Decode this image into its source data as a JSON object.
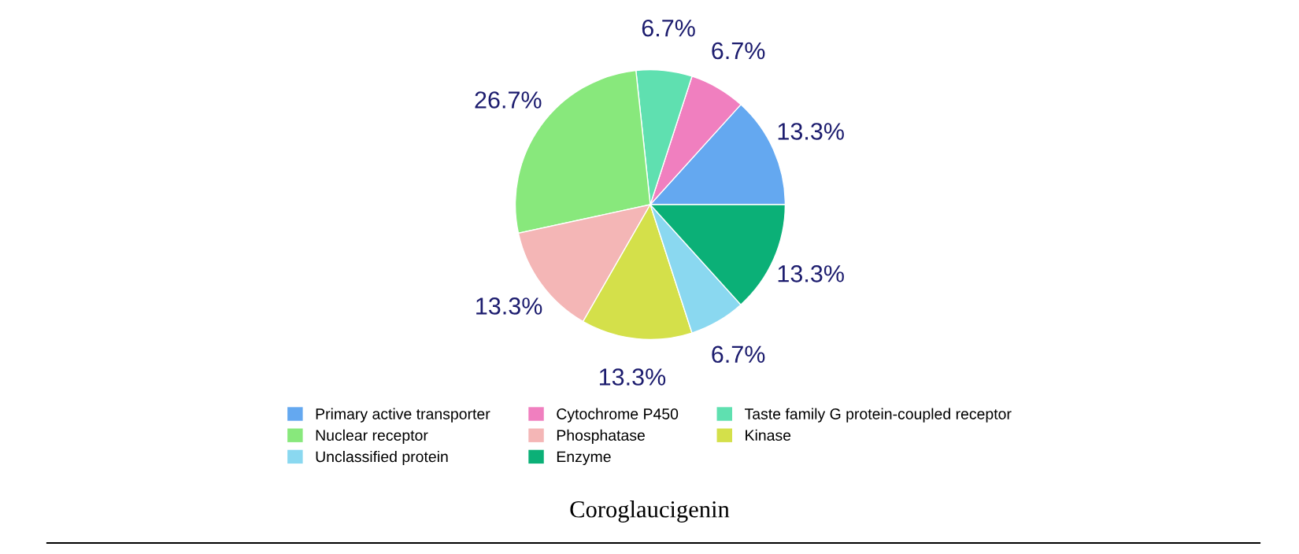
{
  "chart_data": {
    "type": "pie",
    "categories": [
      "Primary active transporter",
      "Cytochrome P450",
      "Taste family G protein-coupled receptor",
      "Nuclear receptor",
      "Phosphatase",
      "Kinase",
      "Unclassified protein",
      "Enzyme"
    ],
    "values": [
      13.3,
      6.7,
      6.7,
      26.7,
      13.3,
      13.3,
      6.7,
      13.3
    ],
    "value_labels": [
      "13.3%",
      "6.7%",
      "6.7%",
      "26.7%",
      "13.3%",
      "13.3%",
      "6.7%",
      "13.3%"
    ],
    "colors": [
      "#64a8f0",
      "#f07fbf",
      "#5fe0b0",
      "#88e87c",
      "#f4b6b6",
      "#d4e04a",
      "#8ad8f0",
      "#0bb077"
    ],
    "legend": "bottom",
    "annotations": [
      "Coroglaucigenin"
    ]
  }
}
